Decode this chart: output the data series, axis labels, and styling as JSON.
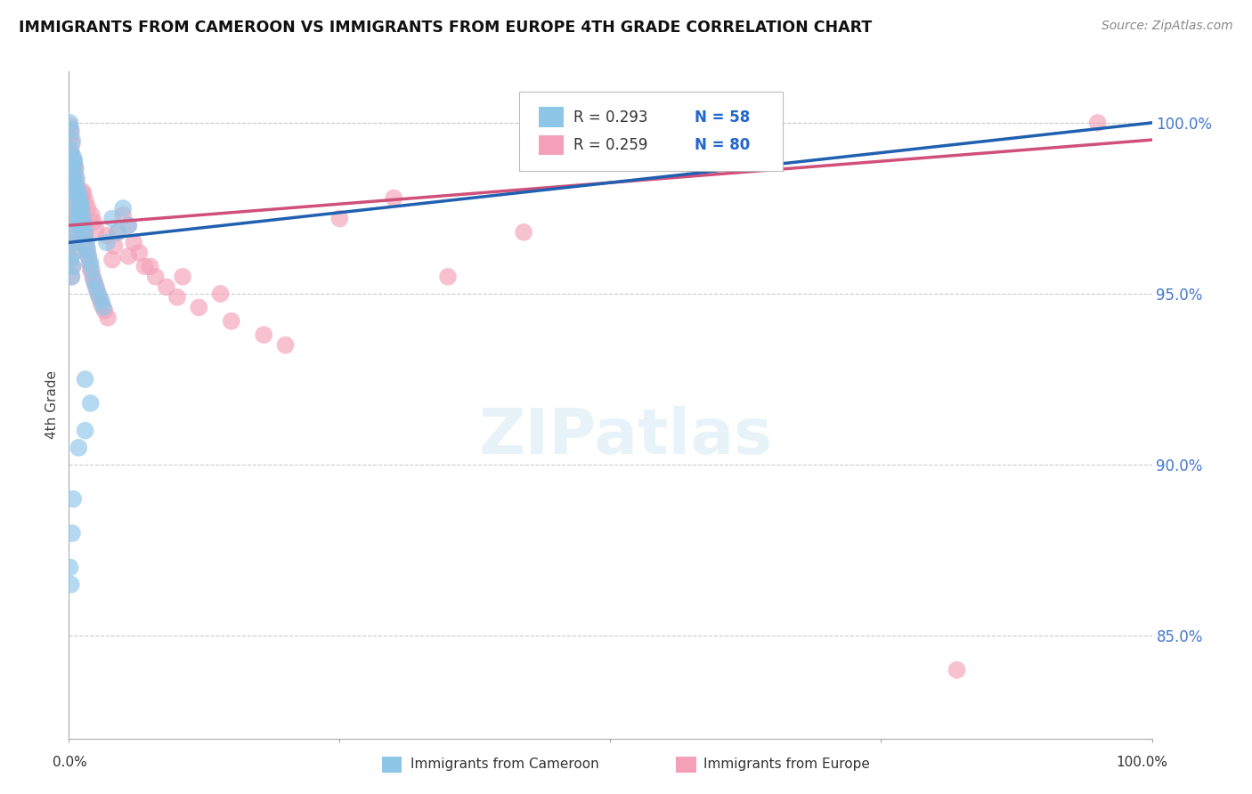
{
  "title": "IMMIGRANTS FROM CAMEROON VS IMMIGRANTS FROM EUROPE 4TH GRADE CORRELATION CHART",
  "source": "Source: ZipAtlas.com",
  "ylabel": "4th Grade",
  "xlim": [
    0.0,
    100.0
  ],
  "ylim": [
    82.0,
    101.5
  ],
  "y_ticks": [
    85.0,
    90.0,
    95.0,
    100.0
  ],
  "y_tick_labels": [
    "85.0%",
    "90.0%",
    "95.0%",
    "100.0%"
  ],
  "legend_blue_r": "R = 0.293",
  "legend_blue_n": "N = 58",
  "legend_pink_r": "R = 0.259",
  "legend_pink_n": "N = 80",
  "label_blue": "Immigrants from Cameroon",
  "label_pink": "Immigrants from Europe",
  "blue_color": "#8ec6e8",
  "pink_color": "#f4a0b8",
  "blue_line_color": "#2060b0",
  "pink_line_color": "#d0507a",
  "blue_scatter_x": [
    0.1,
    0.2,
    0.2,
    0.3,
    0.3,
    0.4,
    0.4,
    0.5,
    0.5,
    0.6,
    0.6,
    0.7,
    0.7,
    0.8,
    0.8,
    0.9,
    0.9,
    1.0,
    1.0,
    1.1,
    1.1,
    1.2,
    1.3,
    1.4,
    1.5,
    1.6,
    1.7,
    1.8,
    2.0,
    2.1,
    2.3,
    2.5,
    2.7,
    3.0,
    3.2,
    3.5,
    4.0,
    4.5,
    5.0,
    5.5,
    0.15,
    0.25,
    0.35,
    0.45,
    0.55,
    0.65,
    0.75,
    0.85,
    0.95,
    1.05,
    1.5,
    2.0,
    0.1,
    0.2,
    0.3,
    0.4,
    0.9,
    1.5
  ],
  "blue_scatter_y": [
    100.0,
    99.8,
    99.2,
    99.5,
    98.8,
    99.0,
    98.5,
    98.9,
    98.2,
    98.7,
    98.0,
    98.4,
    97.8,
    98.1,
    97.5,
    97.9,
    97.3,
    97.8,
    97.1,
    97.6,
    97.0,
    97.4,
    97.2,
    97.0,
    96.8,
    96.5,
    96.3,
    96.1,
    95.9,
    95.7,
    95.4,
    95.2,
    95.0,
    94.8,
    94.6,
    96.5,
    97.2,
    96.8,
    97.5,
    97.0,
    96.0,
    95.5,
    95.8,
    96.2,
    96.5,
    96.8,
    97.0,
    97.2,
    97.4,
    97.6,
    92.5,
    91.8,
    87.0,
    86.5,
    88.0,
    89.0,
    90.5,
    91.0
  ],
  "pink_scatter_x": [
    0.1,
    0.2,
    0.2,
    0.3,
    0.3,
    0.4,
    0.4,
    0.5,
    0.5,
    0.6,
    0.6,
    0.7,
    0.7,
    0.8,
    0.8,
    0.9,
    0.9,
    1.0,
    1.0,
    1.1,
    1.2,
    1.3,
    1.4,
    1.5,
    1.6,
    1.7,
    1.8,
    1.9,
    2.0,
    2.2,
    2.4,
    2.6,
    2.8,
    3.0,
    3.3,
    3.6,
    4.0,
    4.5,
    5.0,
    5.5,
    6.0,
    6.5,
    7.0,
    8.0,
    9.0,
    10.0,
    12.0,
    15.0,
    18.0,
    20.0,
    0.15,
    0.25,
    0.35,
    0.45,
    0.55,
    0.65,
    0.75,
    0.85,
    0.95,
    1.05,
    1.15,
    1.25,
    1.35,
    1.55,
    1.75,
    2.1,
    2.3,
    2.5,
    3.5,
    4.2,
    5.5,
    7.5,
    10.5,
    14.0,
    25.0,
    30.0,
    35.0,
    42.0,
    82.0,
    95.0
  ],
  "pink_scatter_y": [
    99.9,
    99.7,
    99.1,
    99.4,
    98.7,
    98.9,
    98.4,
    98.8,
    98.1,
    98.6,
    97.9,
    98.3,
    97.7,
    98.0,
    97.4,
    97.8,
    97.2,
    97.7,
    97.0,
    97.5,
    97.3,
    97.1,
    96.9,
    96.7,
    96.5,
    96.3,
    96.1,
    95.9,
    95.7,
    95.5,
    95.3,
    95.1,
    94.9,
    94.7,
    94.5,
    94.3,
    96.0,
    96.8,
    97.3,
    97.0,
    96.5,
    96.2,
    95.8,
    95.5,
    95.2,
    94.9,
    94.6,
    94.2,
    93.8,
    93.5,
    96.0,
    95.5,
    95.8,
    96.2,
    96.5,
    96.8,
    97.0,
    97.2,
    97.4,
    97.6,
    97.8,
    98.0,
    97.9,
    97.7,
    97.5,
    97.3,
    97.1,
    96.9,
    96.7,
    96.4,
    96.1,
    95.8,
    95.5,
    95.0,
    97.2,
    97.8,
    95.5,
    96.8,
    84.0,
    100.0
  ]
}
